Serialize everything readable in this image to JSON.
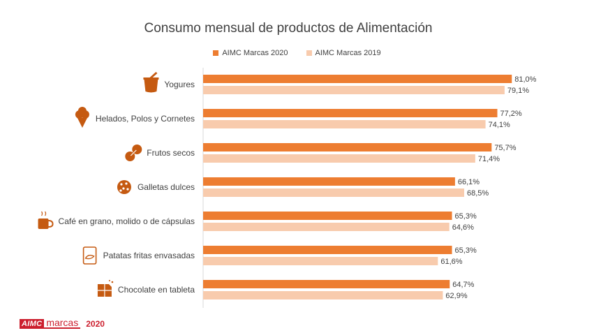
{
  "chart_data": {
    "type": "bar",
    "orientation": "horizontal",
    "title": "Consumo mensual de productos de Alimentación",
    "categories": [
      "Yogures",
      "Helados, Polos y Cornetes",
      "Frutos secos",
      "Galletas dulces",
      "Café en grano, molido o de cápsulas",
      "Patatas fritas envasadas",
      "Chocolate en tableta"
    ],
    "icons": [
      "yogurt-icon",
      "ice-cream-icon",
      "peanut-icon",
      "cookie-icon",
      "coffee-cup-icon",
      "chips-bag-icon",
      "chocolate-bar-icon"
    ],
    "series": [
      {
        "name": "AIMC Marcas 2020",
        "color": "#ed7d31",
        "values": [
          81.0,
          77.2,
          75.7,
          66.1,
          65.3,
          65.3,
          64.7
        ],
        "labels": [
          "81,0%",
          "77,2%",
          "75,7%",
          "66,1%",
          "65,3%",
          "65,3%",
          "64,7%"
        ]
      },
      {
        "name": "AIMC Marcas 2019",
        "color": "#f8cbad",
        "values": [
          79.1,
          74.1,
          71.4,
          68.5,
          64.6,
          61.6,
          62.9
        ],
        "labels": [
          "79,1%",
          "74,1%",
          "71,4%",
          "68,5%",
          "64,6%",
          "61,6%",
          "62,9%"
        ]
      }
    ],
    "legend": "top",
    "grid": false,
    "xlim": [
      0,
      100
    ]
  },
  "branding": {
    "logo_left": "AIMC",
    "logo_right": "marcas",
    "year": "2020"
  }
}
